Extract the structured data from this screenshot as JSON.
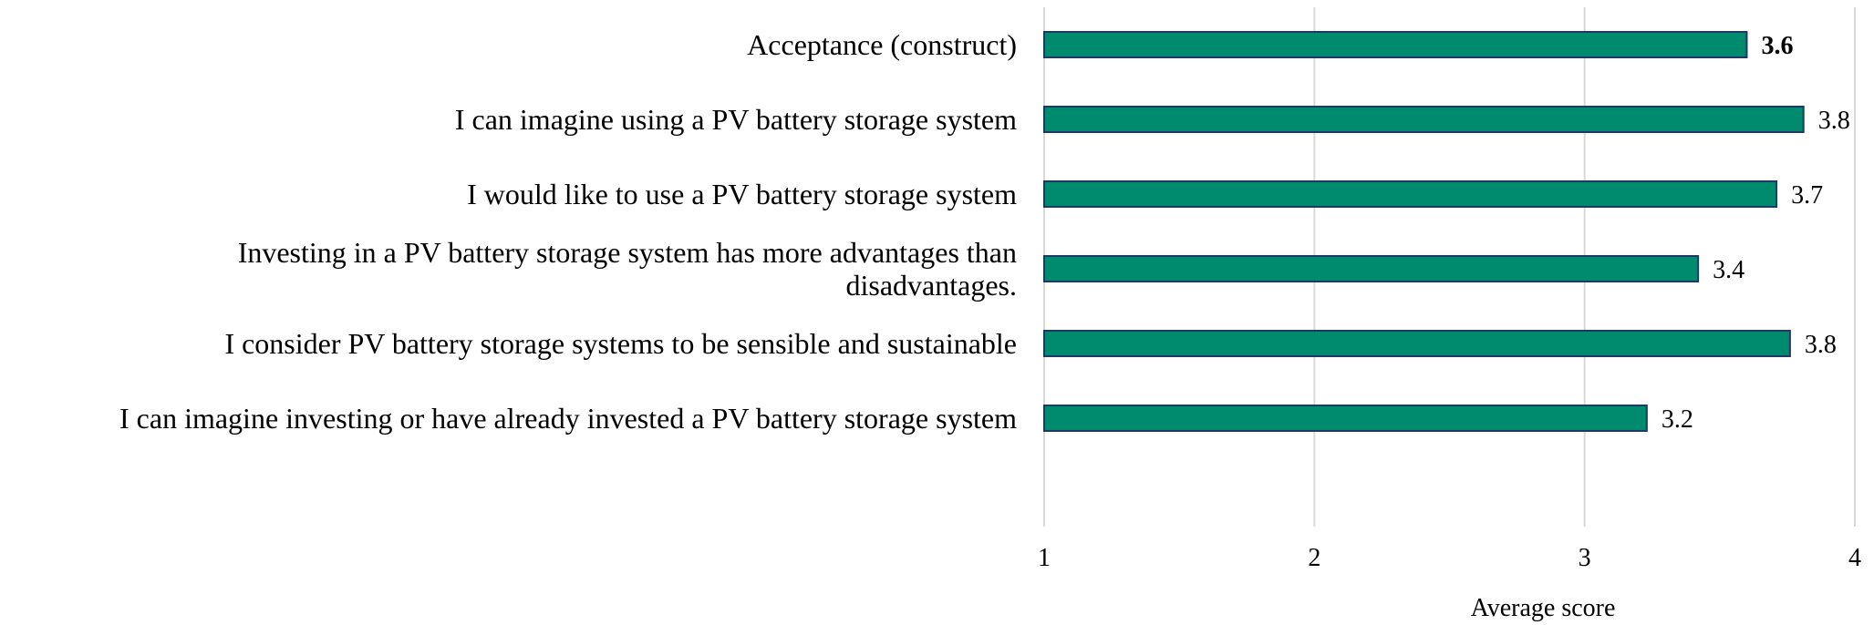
{
  "chart_data": {
    "type": "bar",
    "orientation": "horizontal",
    "categories": [
      [
        "Acceptance (construct)"
      ],
      [
        "I can imagine using a PV battery storage system"
      ],
      [
        "I would like to use a PV battery storage system"
      ],
      [
        "Investing in a PV battery storage system has more advantages than",
        "disadvantages."
      ],
      [
        "I consider PV battery storage systems to be sensible and sustainable"
      ],
      [
        "I can imagine investing or have already invested a PV battery storage system"
      ]
    ],
    "values": [
      3.6,
      3.8,
      3.7,
      3.4,
      3.8,
      3.2
    ],
    "bar_values": [
      3.6,
      3.81,
      3.71,
      3.42,
      3.76,
      3.23
    ],
    "value_labels": [
      "3.6",
      "3.8",
      "3.7",
      "3.4",
      "3.8",
      "3.2"
    ],
    "bold_first_value_label": true,
    "xlabel": "Average score",
    "xlim": [
      1,
      4
    ],
    "xticks": [
      "1",
      "2",
      "3",
      "4"
    ],
    "grid": "vertical",
    "bar_color": "#008A6E",
    "bar_edge_color": "#1F3864",
    "grid_color": "#D9D9D9",
    "legend": "none"
  }
}
